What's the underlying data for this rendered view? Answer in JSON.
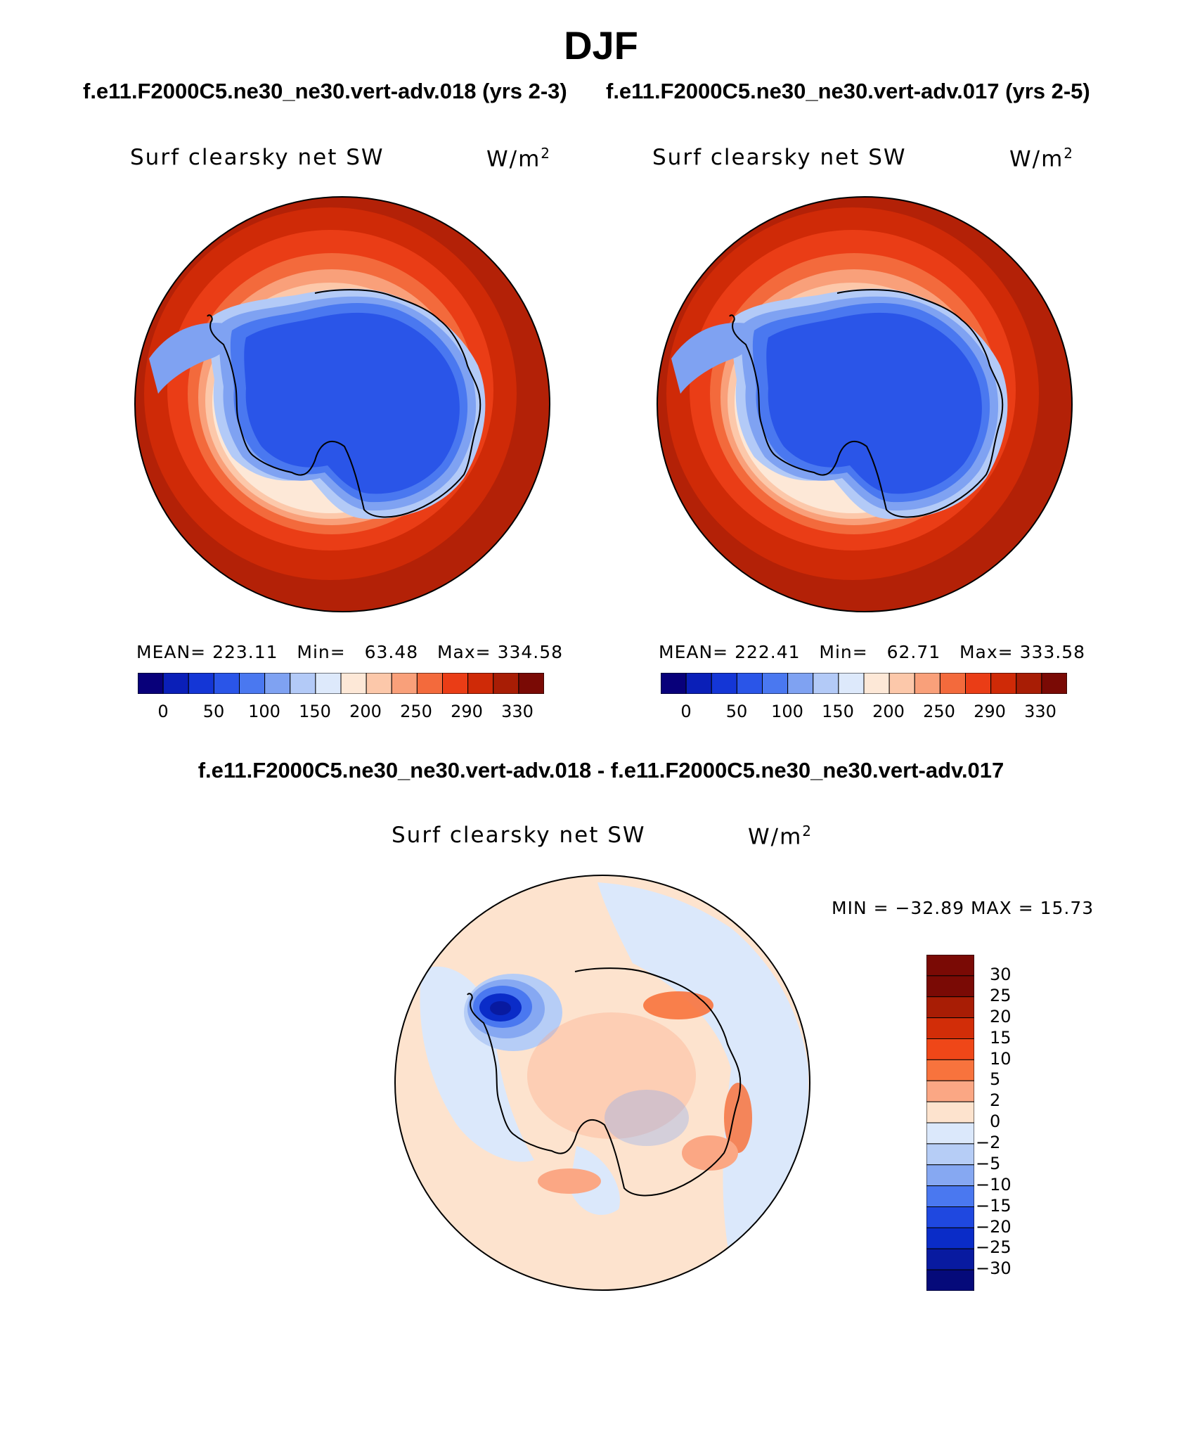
{
  "figure": {
    "season": "DJF",
    "case_left": "f.e11.F2000C5.ne30_ne30.vert-adv.018 (yrs 2-3)",
    "case_right": "f.e11.F2000C5.ne30_ne30.vert-adv.017 (yrs 2-5)",
    "diff_title": "f.e11.F2000C5.ne30_ne30.vert-adv.018 - f.e11.F2000C5.ne30_ne30.vert-adv.017"
  },
  "panels": [
    {
      "variable": "Surf clearsky net SW",
      "units": "W/m",
      "units_sup": "2",
      "mean_label": "MEAN=",
      "mean": "223.11",
      "min_label": "Min=",
      "min": "63.48",
      "max_label": "Max=",
      "max": "334.58"
    },
    {
      "variable": "Surf clearsky net SW",
      "units": "W/m",
      "units_sup": "2",
      "mean_label": "MEAN=",
      "mean": "222.41",
      "min_label": "Min=",
      "min": "62.71",
      "max_label": "Max=",
      "max": "333.58"
    }
  ],
  "diff_panel": {
    "variable": "Surf clearsky net SW",
    "units": "W/m",
    "units_sup": "2",
    "minmax": "MIN = −32.89 MAX =   15.73"
  },
  "colorbar_abs": {
    "colors": [
      "#08007a",
      "#0a1fb8",
      "#1436d6",
      "#2a55e8",
      "#4a78f0",
      "#7fa2f2",
      "#b3caf7",
      "#dde9fb",
      "#fde8d7",
      "#fcc8aa",
      "#f9a07a",
      "#f36a3c",
      "#ea3d16",
      "#cf2a07",
      "#a81d05",
      "#7a0a05"
    ],
    "tick_labels": [
      "0",
      "50",
      "100",
      "150",
      "200",
      "250",
      "290",
      "330"
    ]
  },
  "colorbar_diff": {
    "colors": [
      "#7a0a05",
      "#a81d05",
      "#d22d08",
      "#ef4718",
      "#f8733d",
      "#fba784",
      "#fde3ce",
      "#dbe8fb",
      "#b6cdf6",
      "#86a8f2",
      "#4a78f0",
      "#1f48e0",
      "#0a2cc8",
      "#081aa0",
      "#050a7a"
    ],
    "tick_labels": [
      "30",
      "25",
      "20",
      "15",
      "10",
      "5",
      "2",
      "0",
      "−2",
      "−5",
      "−10",
      "−15",
      "−20",
      "−25",
      "−30"
    ]
  }
}
